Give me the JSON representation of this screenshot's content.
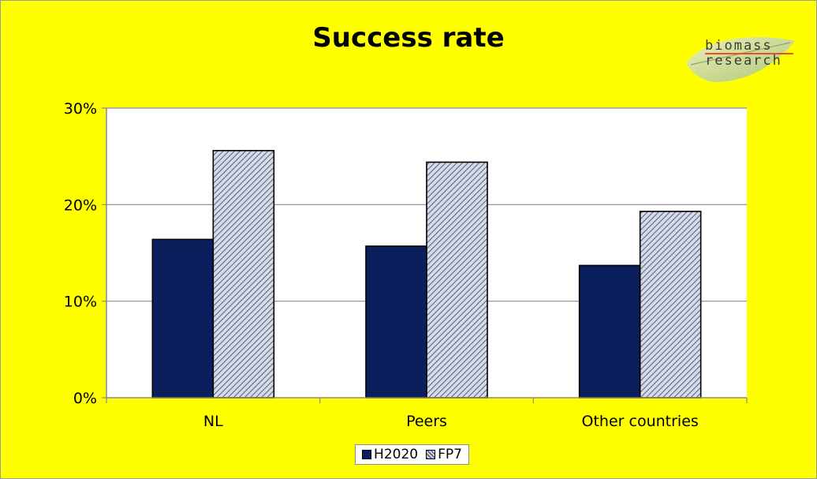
{
  "chart_data": {
    "type": "bar",
    "title": "Success rate",
    "categories": [
      "NL",
      "Peers",
      "Other countries"
    ],
    "series": [
      {
        "name": "H2020",
        "values": [
          16.4,
          15.7,
          13.7
        ],
        "color": "#0b1f5c",
        "pattern": "solid"
      },
      {
        "name": "FP7",
        "values": [
          25.6,
          24.4,
          19.3
        ],
        "color": "#b8c2da",
        "pattern": "diagonal-hatch"
      }
    ],
    "y_ticks": [
      "0%",
      "10%",
      "20%",
      "30%"
    ],
    "ylim": [
      0,
      30
    ],
    "y_unit": "percent",
    "grid": true,
    "legend_position": "bottom",
    "background_color": "#ffff00",
    "plot_area_color": "#ffffff"
  },
  "logo": {
    "line1": "biomass",
    "line2": "research"
  }
}
